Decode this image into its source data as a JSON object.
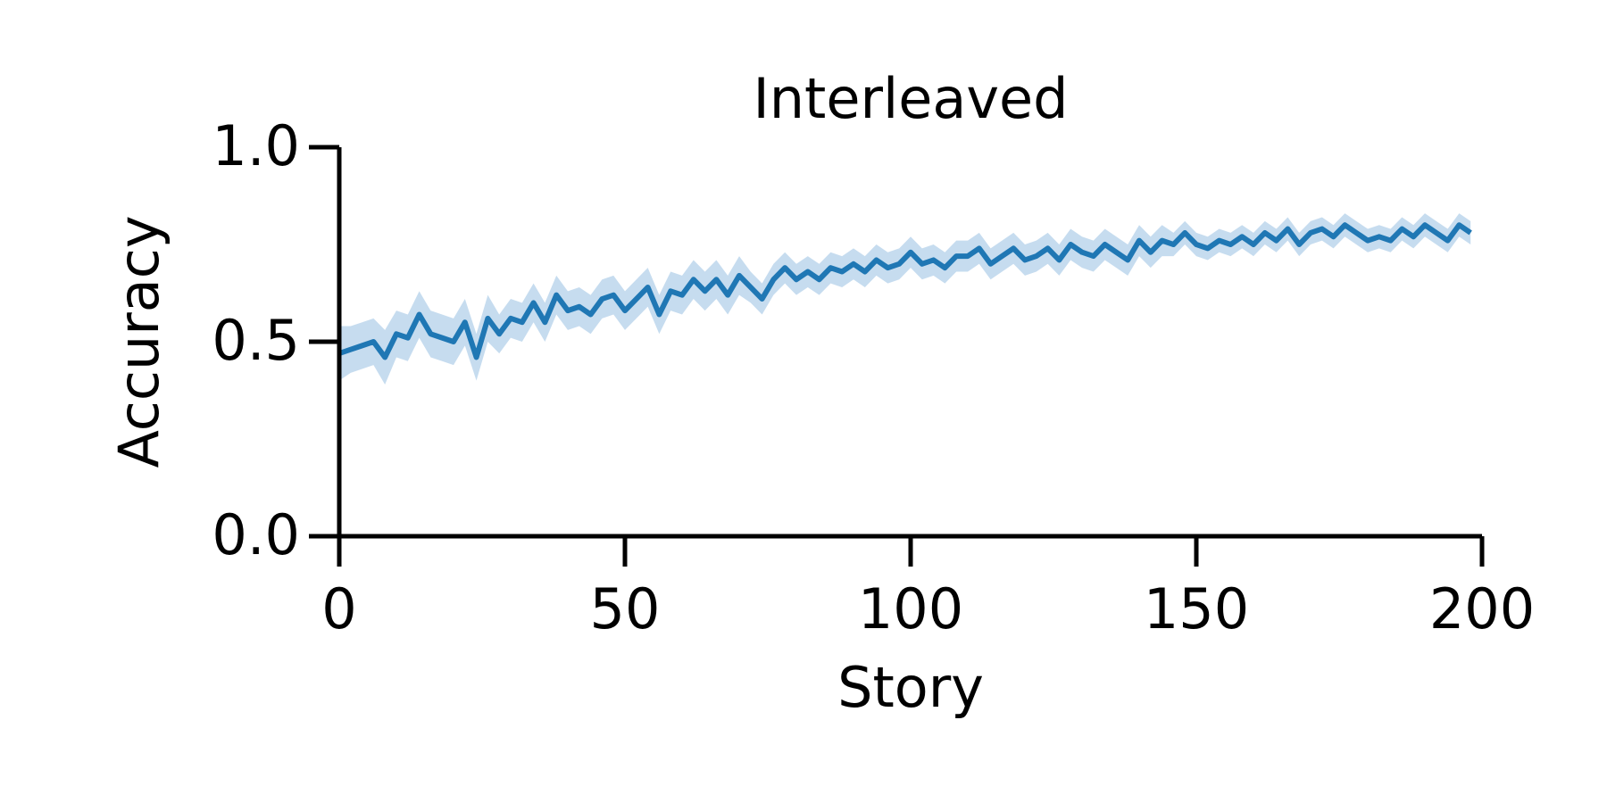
{
  "chart_data": {
    "type": "line",
    "title": "Interleaved",
    "x_label": "Story",
    "y_label": "Accuracy",
    "x": [
      0,
      2,
      4,
      6,
      8,
      10,
      12,
      14,
      16,
      18,
      20,
      22,
      24,
      26,
      28,
      30,
      32,
      34,
      36,
      38,
      40,
      42,
      44,
      46,
      48,
      50,
      52,
      54,
      56,
      58,
      60,
      62,
      64,
      66,
      68,
      70,
      72,
      74,
      76,
      78,
      80,
      82,
      84,
      86,
      88,
      90,
      92,
      94,
      96,
      98,
      100,
      102,
      104,
      106,
      108,
      110,
      112,
      114,
      116,
      118,
      120,
      122,
      124,
      126,
      128,
      130,
      132,
      134,
      136,
      138,
      140,
      142,
      144,
      146,
      148,
      150,
      152,
      154,
      156,
      158,
      160,
      162,
      164,
      166,
      168,
      170,
      172,
      174,
      176,
      178,
      180,
      182,
      184,
      186,
      188,
      190,
      192,
      194,
      196,
      198
    ],
    "series": [
      {
        "color": "#1f77b4",
        "band_color": "#aecde8",
        "values": [
          0.47,
          0.48,
          0.49,
          0.5,
          0.46,
          0.52,
          0.51,
          0.57,
          0.52,
          0.51,
          0.5,
          0.55,
          0.46,
          0.56,
          0.52,
          0.56,
          0.55,
          0.6,
          0.55,
          0.62,
          0.58,
          0.59,
          0.57,
          0.61,
          0.62,
          0.58,
          0.61,
          0.64,
          0.57,
          0.63,
          0.62,
          0.66,
          0.63,
          0.66,
          0.62,
          0.67,
          0.64,
          0.61,
          0.66,
          0.69,
          0.66,
          0.68,
          0.66,
          0.69,
          0.68,
          0.7,
          0.68,
          0.71,
          0.69,
          0.7,
          0.73,
          0.7,
          0.71,
          0.69,
          0.72,
          0.72,
          0.74,
          0.7,
          0.72,
          0.74,
          0.71,
          0.72,
          0.74,
          0.71,
          0.75,
          0.73,
          0.72,
          0.75,
          0.73,
          0.71,
          0.76,
          0.73,
          0.76,
          0.75,
          0.78,
          0.75,
          0.74,
          0.76,
          0.75,
          0.77,
          0.75,
          0.78,
          0.76,
          0.79,
          0.75,
          0.78,
          0.79,
          0.77,
          0.8,
          0.78,
          0.76,
          0.77,
          0.76,
          0.79,
          0.77,
          0.8,
          0.78,
          0.76,
          0.8,
          0.78
        ],
        "errors": [
          0.07,
          0.06,
          0.06,
          0.06,
          0.07,
          0.06,
          0.06,
          0.06,
          0.06,
          0.06,
          0.06,
          0.06,
          0.06,
          0.06,
          0.05,
          0.05,
          0.05,
          0.05,
          0.05,
          0.05,
          0.05,
          0.05,
          0.05,
          0.05,
          0.05,
          0.05,
          0.05,
          0.05,
          0.05,
          0.05,
          0.05,
          0.05,
          0.05,
          0.05,
          0.05,
          0.05,
          0.04,
          0.04,
          0.04,
          0.04,
          0.04,
          0.04,
          0.04,
          0.04,
          0.04,
          0.04,
          0.04,
          0.04,
          0.04,
          0.04,
          0.04,
          0.04,
          0.04,
          0.04,
          0.04,
          0.04,
          0.04,
          0.04,
          0.04,
          0.04,
          0.04,
          0.04,
          0.04,
          0.04,
          0.04,
          0.04,
          0.04,
          0.04,
          0.04,
          0.04,
          0.04,
          0.04,
          0.04,
          0.03,
          0.03,
          0.03,
          0.03,
          0.03,
          0.03,
          0.03,
          0.03,
          0.03,
          0.03,
          0.03,
          0.03,
          0.03,
          0.03,
          0.03,
          0.03,
          0.03,
          0.03,
          0.03,
          0.03,
          0.03,
          0.03,
          0.03,
          0.03,
          0.03,
          0.03,
          0.03
        ]
      }
    ],
    "xlim": [
      0,
      200
    ],
    "xticks": [
      0,
      50,
      100,
      150,
      200
    ],
    "ylim": [
      0,
      1
    ],
    "yticks": [
      {
        "value": 0,
        "label": "0.0"
      },
      {
        "value": 0.5,
        "label": "0.5"
      },
      {
        "value": 1,
        "label": "1.0"
      }
    ],
    "grid": false
  }
}
